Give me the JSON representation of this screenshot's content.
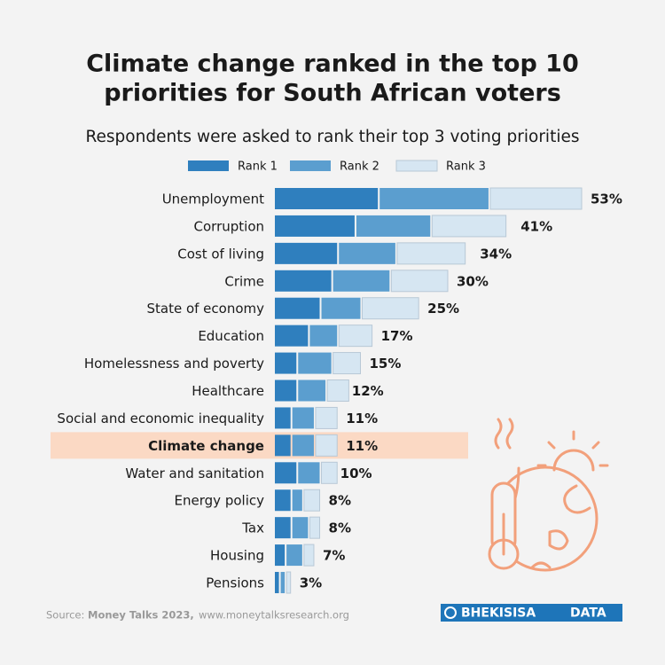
{
  "chart_data": {
    "type": "bar",
    "orientation": "horizontal",
    "stacked": true,
    "title": [
      "Climate change ranked in the top 10",
      "priorities for South African voters"
    ],
    "subtitle": "Respondents were asked to rank their top 3 voting priorities",
    "categories": [
      "Unemployment",
      "Corruption",
      "Cost of living",
      "Crime",
      "State of economy",
      "Education",
      "Homelessness and poverty",
      "Healthcare",
      "Social and economic inequality",
      "Climate change",
      "Water and sanitation",
      "Energy policy",
      "Tax",
      "Housing",
      "Pensions"
    ],
    "series": [
      {
        "name": "Rank 1",
        "color": "#2f7fbe",
        "values": [
          18,
          14,
          11,
          10,
          8,
          6,
          4,
          4,
          3,
          3,
          4,
          3,
          3,
          2,
          1
        ]
      },
      {
        "name": "Rank 2",
        "color": "#5b9ecf",
        "values": [
          19,
          13,
          10,
          10,
          7,
          5,
          6,
          5,
          4,
          4,
          4,
          2,
          3,
          3,
          1
        ]
      },
      {
        "name": "Rank 3",
        "color": "#d6e6f2",
        "values": [
          16,
          13,
          12,
          10,
          10,
          6,
          5,
          4,
          4,
          4,
          3,
          3,
          2,
          2,
          1
        ]
      }
    ],
    "totals": [
      53,
      41,
      34,
      30,
      25,
      17,
      15,
      12,
      11,
      11,
      10,
      8,
      8,
      7,
      3
    ],
    "total_labels": [
      "53%",
      "41%",
      "34%",
      "30%",
      "25%",
      "17%",
      "15%",
      "12%",
      "11%",
      "11%",
      "10%",
      "8%",
      "8%",
      "7%",
      "3%"
    ],
    "highlight_index": 9,
    "highlight_color": "#fbd9c4",
    "legend": "top",
    "source": {
      "label": "Source:",
      "name": "Money Talks 2023,",
      "url": "www.moneytalksresearch.org"
    },
    "logo": [
      "BHEKISISA",
      "DATA"
    ]
  }
}
